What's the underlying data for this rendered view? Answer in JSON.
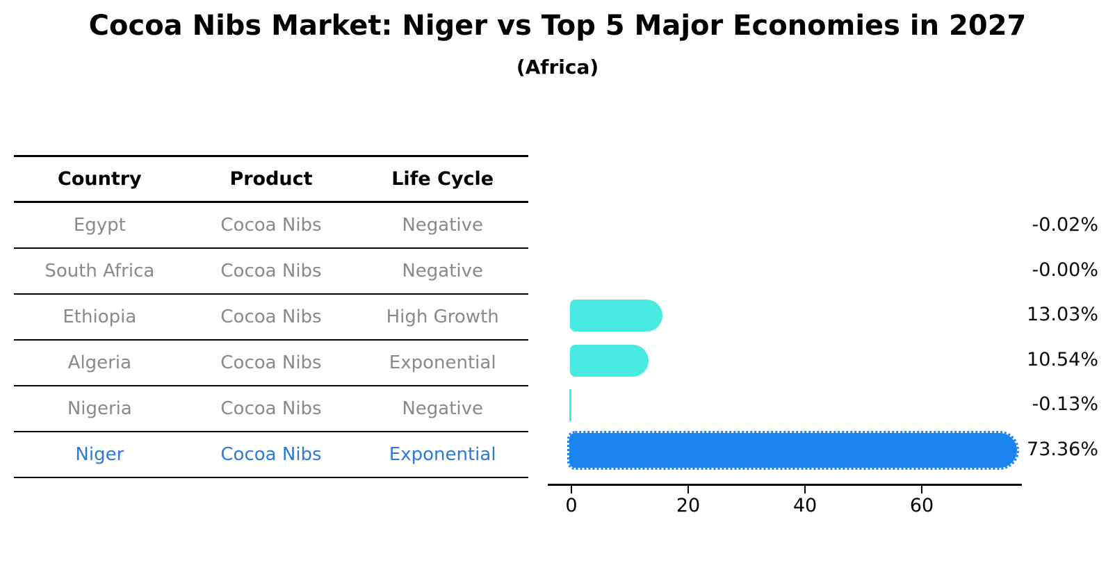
{
  "header": {
    "title": "Cocoa Nibs Market: Niger vs Top 5 Major Economies in 2027",
    "subtitle": "(Africa)"
  },
  "table": {
    "columns": [
      "Country",
      "Product",
      "Life Cycle"
    ],
    "rows": [
      {
        "country": "Egypt",
        "product": "Cocoa Nibs",
        "life_cycle": "Negative",
        "highlight": false
      },
      {
        "country": "South Africa",
        "product": "Cocoa Nibs",
        "life_cycle": "Negative",
        "highlight": false
      },
      {
        "country": "Ethiopia",
        "product": "Cocoa Nibs",
        "life_cycle": "High Growth",
        "highlight": false
      },
      {
        "country": "Algeria",
        "product": "Cocoa Nibs",
        "life_cycle": "Exponential",
        "highlight": false
      },
      {
        "country": "Nigeria",
        "product": "Cocoa Nibs",
        "life_cycle": "Negative",
        "highlight": false
      },
      {
        "country": "Niger",
        "product": "Cocoa Nibs",
        "life_cycle": "Exponential",
        "highlight": true
      }
    ]
  },
  "chart_data": {
    "type": "bar",
    "orientation": "horizontal",
    "title": "Cocoa Nibs Market: Niger vs Top 5 Major Economies in 2027 (Africa)",
    "categories": [
      "Egypt",
      "South Africa",
      "Ethiopia",
      "Algeria",
      "Nigeria",
      "Niger"
    ],
    "values": [
      -0.02,
      -0.0,
      13.03,
      10.54,
      -0.13,
      73.36
    ],
    "value_labels": [
      "-0.02%",
      "-0.00%",
      "13.03%",
      "10.54%",
      "-0.13%",
      "73.36%"
    ],
    "unit": "percent",
    "x_ticks": [
      0,
      20,
      40,
      60
    ],
    "xlim": [
      0,
      77
    ],
    "grid": false,
    "legend": "none",
    "highlight_category": "Niger",
    "colors": {
      "bar_default": "#48eae2",
      "bar_highlight": "#1c84f0",
      "highlight_text": "#2a7bd9",
      "label_text": "#0b0b0b",
      "table_text": "#898989"
    }
  }
}
